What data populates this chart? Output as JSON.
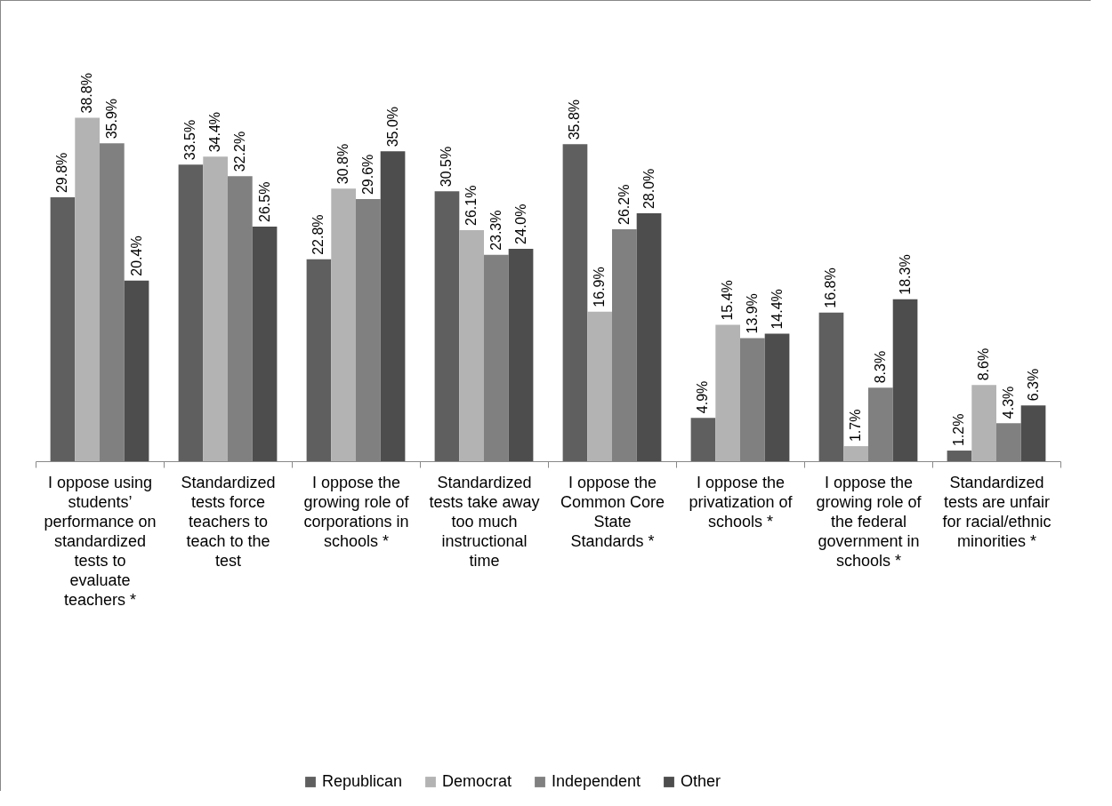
{
  "chart_data": {
    "type": "bar",
    "categories": [
      "I oppose using students’ performance on standardized tests to evaluate teachers *",
      "Standardized tests force teachers to teach to the test",
      "I oppose the growing role of corporations in schools *",
      "Standardized tests take away too much instructional time",
      "I oppose the Common Core State Standards *",
      "I oppose the privatization of schools *",
      "I oppose the growing role of the federal government in schools *",
      "Standardized tests are unfair for racial/ethnic minorities *"
    ],
    "series": [
      {
        "name": "Republican",
        "color": "#5f5f5f",
        "values": [
          29.8,
          33.5,
          22.8,
          30.5,
          35.8,
          4.9,
          16.8,
          1.2
        ],
        "value_labels": [
          "29.8%",
          "33.5%",
          "22.8%",
          "30.5%",
          "35.8%",
          "4.9%",
          "16.8%",
          "1.2%"
        ]
      },
      {
        "name": "Democrat",
        "color": "#b3b3b3",
        "values": [
          38.8,
          34.4,
          30.8,
          26.1,
          16.9,
          15.4,
          1.7,
          8.6
        ],
        "value_labels": [
          "38.8%",
          "34.4%",
          "30.8%",
          "26.1%",
          "16.9%",
          "15.4%",
          "1.7%",
          "8.6%"
        ]
      },
      {
        "name": "Independent",
        "color": "#808080",
        "values": [
          35.9,
          32.2,
          29.6,
          23.3,
          26.2,
          13.9,
          8.3,
          4.3
        ],
        "value_labels": [
          "35.9%",
          "32.2%",
          "29.6%",
          "23.3%",
          "26.2%",
          "13.9%",
          "8.3%",
          "4.3%"
        ]
      },
      {
        "name": "Other",
        "color": "#4d4d4d",
        "values": [
          20.4,
          26.5,
          35.0,
          24.0,
          28.0,
          14.4,
          18.3,
          6.3
        ],
        "value_labels": [
          "20.4%",
          "26.5%",
          "35.0%",
          "24.0%",
          "28.0%",
          "14.4%",
          "18.3%",
          "6.3%"
        ]
      }
    ],
    "legend": "bottom",
    "grid": false
  }
}
